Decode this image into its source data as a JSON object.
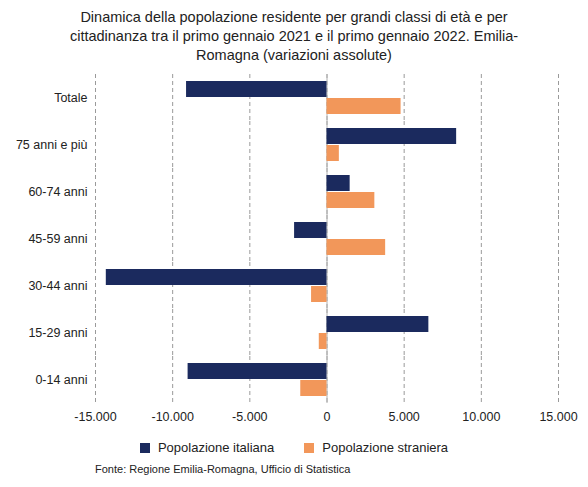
{
  "chart_data": {
    "type": "bar",
    "orientation": "horizontal",
    "title": "Dinamica della popolazione residente per grandi classi di età e per cittadinanza tra il primo gennaio 2021 e il primo gennaio 2022. Emilia- Romagna (variazioni assolute)",
    "caption": "Fonte: Regione Emilia-Romagna, Ufficio di Statistica",
    "categories": [
      "Totale",
      "75 anni e più",
      "60-74 anni",
      "45-59 anni",
      "30-44 anni",
      "15-29 anni",
      "0-14 anni"
    ],
    "series": [
      {
        "name": "Popolazione italiana",
        "color": "#1b2a5e",
        "values": [
          -9100,
          8400,
          1500,
          -2100,
          -14300,
          6600,
          -9000
        ]
      },
      {
        "name": "Popolazione straniera",
        "color": "#f2975a",
        "values": [
          4800,
          800,
          3100,
          3800,
          -1000,
          -500,
          -1700
        ]
      }
    ],
    "xlim": [
      -15000,
      15000
    ],
    "xticks": [
      {
        "value": -15000,
        "label": "-15.000"
      },
      {
        "value": -10000,
        "label": "-10.000"
      },
      {
        "value": -5000,
        "label": "-5.000"
      },
      0,
      {
        "value": 5000,
        "label": "5.000"
      },
      {
        "value": 10000,
        "label": "10.000"
      },
      {
        "value": 15000,
        "label": "15.000"
      }
    ],
    "grid": true,
    "legend": "bottom"
  }
}
